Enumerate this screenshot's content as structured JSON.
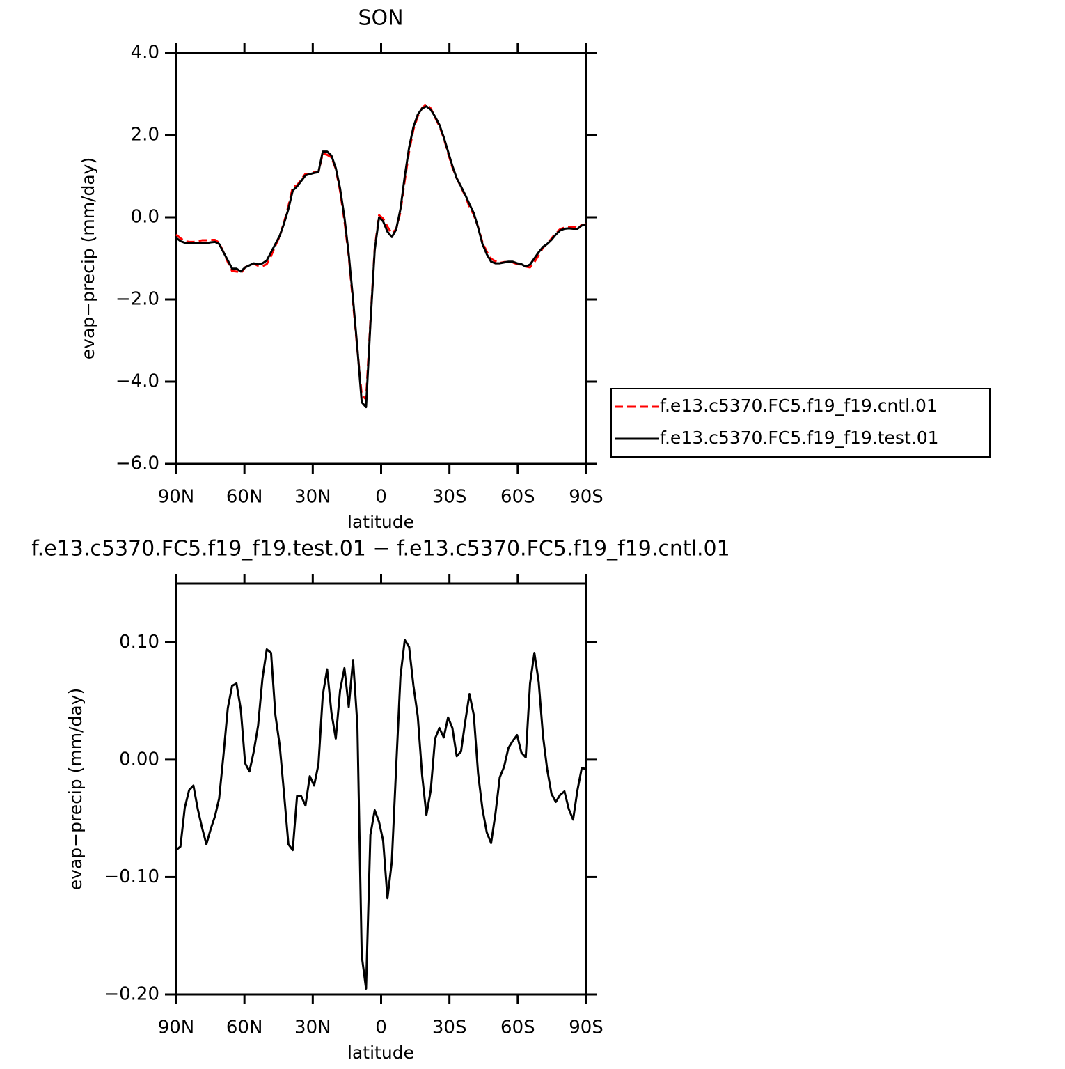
{
  "chart_data": [
    {
      "type": "line",
      "title": "SON",
      "xlabel": "latitude",
      "ylabel": "evap−precip (mm/day)",
      "x": [
        90.0,
        88.1,
        86.2,
        84.3,
        82.4,
        80.5,
        78.6,
        76.7,
        74.8,
        72.9,
        71.1,
        69.2,
        67.3,
        65.4,
        63.5,
        61.6,
        59.7,
        57.8,
        55.9,
        54.0,
        52.1,
        50.2,
        48.3,
        46.4,
        44.5,
        42.6,
        40.7,
        38.8,
        36.9,
        35.1,
        33.2,
        31.3,
        29.4,
        27.5,
        25.6,
        23.7,
        21.8,
        19.9,
        18.0,
        16.1,
        14.2,
        12.3,
        10.4,
        8.5,
        6.6,
        4.7,
        2.8,
        0.9,
        -0.9,
        -2.8,
        -4.7,
        -6.6,
        -8.5,
        -10.4,
        -12.3,
        -14.2,
        -16.1,
        -18.0,
        -19.9,
        -21.8,
        -23.7,
        -25.6,
        -27.5,
        -29.4,
        -31.3,
        -33.2,
        -35.1,
        -36.9,
        -38.8,
        -40.7,
        -42.6,
        -44.5,
        -46.4,
        -48.3,
        -50.2,
        -52.1,
        -54.0,
        -55.9,
        -57.8,
        -59.7,
        -61.6,
        -63.5,
        -65.4,
        -67.3,
        -69.2,
        -71.1,
        -72.9,
        -74.8,
        -76.7,
        -78.6,
        -80.5,
        -82.4,
        -84.3,
        -86.2,
        -88.1,
        -90.0
      ],
      "series": [
        {
          "name": "f.e13.c5370.FC5.f19_f19.cntl.01",
          "color": "#ff0000",
          "style": "dashed",
          "values": [
            -0.42,
            -0.51,
            -0.58,
            -0.6,
            -0.6,
            -0.58,
            -0.56,
            -0.56,
            -0.55,
            -0.55,
            -0.62,
            -0.85,
            -1.09,
            -1.31,
            -1.32,
            -1.36,
            -1.22,
            -1.16,
            -1.13,
            -1.18,
            -1.19,
            -1.14,
            -0.94,
            -0.69,
            -0.46,
            -0.12,
            0.27,
            0.73,
            0.78,
            0.91,
            1.06,
            1.06,
            1.1,
            1.1,
            1.55,
            1.52,
            1.46,
            1.18,
            0.64,
            -0.08,
            -0.95,
            -2.09,
            -3.23,
            -4.33,
            -4.43,
            -2.54,
            -0.76,
            0.05,
            -0.03,
            -0.23,
            -0.39,
            -0.29,
            0.13,
            0.9,
            1.6,
            2.14,
            2.46,
            2.66,
            2.75,
            2.65,
            2.43,
            2.22,
            1.93,
            1.56,
            1.22,
            0.95,
            0.74,
            0.52,
            0.26,
            0.06,
            -0.24,
            -0.61,
            -0.84,
            -1.01,
            -1.07,
            -1.11,
            -1.09,
            -1.09,
            -1.1,
            -1.14,
            -1.15,
            -1.2,
            -1.22,
            -1.09,
            -0.92,
            -0.74,
            -0.64,
            -0.52,
            -0.38,
            -0.29,
            -0.25,
            -0.23,
            -0.23,
            -0.25,
            -0.19,
            -0.17
          ]
        },
        {
          "name": "f.e13.c5370.FC5.f19_f19.test.01",
          "color": "#000000",
          "style": "solid",
          "values": [
            -0.5,
            -0.58,
            -0.62,
            -0.63,
            -0.62,
            -0.62,
            -0.62,
            -0.63,
            -0.61,
            -0.6,
            -0.65,
            -0.85,
            -1.05,
            -1.25,
            -1.25,
            -1.32,
            -1.22,
            -1.17,
            -1.12,
            -1.15,
            -1.12,
            -1.05,
            -0.85,
            -0.65,
            -0.45,
            -0.15,
            0.2,
            0.65,
            0.75,
            0.88,
            1.02,
            1.05,
            1.08,
            1.1,
            1.6,
            1.6,
            1.5,
            1.2,
            0.7,
            0.0,
            -0.9,
            -2.0,
            -3.2,
            -4.5,
            -4.62,
            -2.6,
            -0.8,
            0.0,
            -0.1,
            -0.35,
            -0.48,
            -0.3,
            0.2,
            1.0,
            1.7,
            2.2,
            2.5,
            2.65,
            2.7,
            2.62,
            2.45,
            2.25,
            1.95,
            1.6,
            1.25,
            0.95,
            0.75,
            0.55,
            0.32,
            0.1,
            -0.25,
            -0.65,
            -0.9,
            -1.08,
            -1.12,
            -1.12,
            -1.1,
            -1.08,
            -1.08,
            -1.12,
            -1.14,
            -1.2,
            -1.15,
            -1.0,
            -0.85,
            -0.72,
            -0.65,
            -0.55,
            -0.42,
            -0.32,
            -0.28,
            -0.27,
            -0.28,
            -0.28,
            -0.2,
            -0.18
          ]
        }
      ],
      "xlim": [
        90,
        -90
      ],
      "xticks": [
        {
          "value": 90,
          "label": "90N"
        },
        {
          "value": 60,
          "label": "60N"
        },
        {
          "value": 30,
          "label": "30N"
        },
        0,
        {
          "value": -30,
          "label": "30S"
        },
        {
          "value": -60,
          "label": "60S"
        },
        {
          "value": -90,
          "label": "90S"
        }
      ],
      "ylim": [
        -6,
        4
      ],
      "yticks": [
        {
          "value": -6,
          "label": "−6.0"
        },
        {
          "value": -4,
          "label": "−4.0"
        },
        {
          "value": -2,
          "label": "−2.0"
        },
        {
          "value": 0,
          "label": "0.0"
        },
        {
          "value": 2,
          "label": "2.0"
        },
        {
          "value": 4,
          "label": "4.0"
        }
      ],
      "legend": "right"
    },
    {
      "type": "line",
      "title": "f.e13.c5370.FC5.f19_f19.test.01  −  f.e13.c5370.FC5.f19_f19.cntl.01",
      "xlabel": "latitude",
      "ylabel": "evap−precip (mm/day)",
      "x": [
        90.0,
        88.1,
        86.2,
        84.3,
        82.4,
        80.5,
        78.6,
        76.7,
        74.8,
        72.9,
        71.1,
        69.2,
        67.3,
        65.4,
        63.5,
        61.6,
        59.7,
        57.8,
        55.9,
        54.0,
        52.1,
        50.2,
        48.3,
        46.4,
        44.5,
        42.6,
        40.7,
        38.8,
        36.9,
        35.1,
        33.2,
        31.3,
        29.4,
        27.5,
        25.6,
        23.7,
        21.8,
        19.9,
        18.0,
        16.1,
        14.2,
        12.3,
        10.4,
        8.5,
        6.6,
        4.7,
        2.8,
        0.9,
        -0.9,
        -2.8,
        -4.7,
        -6.6,
        -8.5,
        -10.4,
        -12.3,
        -14.2,
        -16.1,
        -18.0,
        -19.9,
        -21.8,
        -23.7,
        -25.6,
        -27.5,
        -29.4,
        -31.3,
        -33.2,
        -35.1,
        -36.9,
        -38.8,
        -40.7,
        -42.6,
        -44.5,
        -46.4,
        -48.3,
        -50.2,
        -52.1,
        -54.0,
        -55.9,
        -57.8,
        -59.7,
        -61.6,
        -63.5,
        -65.4,
        -67.3,
        -69.2,
        -71.1,
        -72.9,
        -74.8,
        -76.7,
        -78.6,
        -80.5,
        -82.4,
        -84.3,
        -86.2,
        -88.1,
        -90.0
      ],
      "series": [
        {
          "color": "#000000",
          "style": "solid",
          "values": [
            -0.077,
            -0.074,
            -0.041,
            -0.026,
            -0.022,
            -0.042,
            -0.058,
            -0.072,
            -0.059,
            -0.048,
            -0.033,
            0.004,
            0.044,
            0.063,
            0.065,
            0.043,
            -0.003,
            -0.01,
            0.007,
            0.029,
            0.069,
            0.094,
            0.091,
            0.038,
            0.012,
            -0.029,
            -0.072,
            -0.077,
            -0.031,
            -0.031,
            -0.039,
            -0.014,
            -0.022,
            -0.004,
            0.055,
            0.077,
            0.04,
            0.018,
            0.059,
            0.078,
            0.045,
            0.085,
            0.029,
            -0.167,
            -0.195,
            -0.064,
            -0.043,
            -0.053,
            -0.069,
            -0.118,
            -0.087,
            -0.007,
            0.071,
            0.102,
            0.096,
            0.063,
            0.037,
            -0.013,
            -0.047,
            -0.026,
            0.018,
            0.027,
            0.019,
            0.036,
            0.027,
            0.003,
            0.007,
            0.032,
            0.056,
            0.038,
            -0.012,
            -0.042,
            -0.062,
            -0.071,
            -0.046,
            -0.015,
            -0.006,
            0.01,
            0.016,
            0.021,
            0.006,
            0.002,
            0.065,
            0.091,
            0.066,
            0.02,
            -0.008,
            -0.029,
            -0.036,
            -0.03,
            -0.027,
            -0.042,
            -0.051,
            -0.026,
            -0.007,
            -0.008
          ]
        }
      ],
      "xlim": [
        90,
        -90
      ],
      "xticks": [
        {
          "value": 90,
          "label": "90N"
        },
        {
          "value": 60,
          "label": "60N"
        },
        {
          "value": 30,
          "label": "30N"
        },
        0,
        {
          "value": -30,
          "label": "30S"
        },
        {
          "value": -60,
          "label": "60S"
        },
        {
          "value": -90,
          "label": "90S"
        }
      ],
      "ylim": [
        -0.2,
        0.15
      ],
      "yticks": [
        {
          "value": -0.2,
          "label": "−0.20"
        },
        {
          "value": -0.1,
          "label": "−0.10"
        },
        {
          "value": 0,
          "label": "0.00"
        },
        {
          "value": 0.1,
          "label": "0.10"
        }
      ]
    }
  ]
}
